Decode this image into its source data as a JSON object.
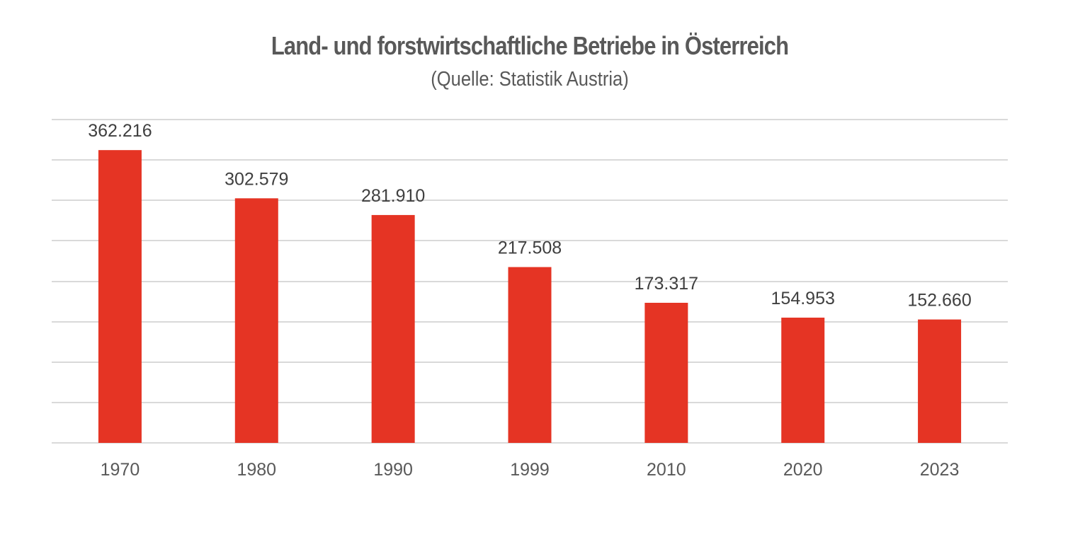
{
  "chart_data": {
    "type": "bar",
    "title": "Land- und forstwirtschaftliche Betriebe in Österreich",
    "subtitle": "(Quelle: Statistik Austria)",
    "categories": [
      "1970",
      "1980",
      "1990",
      "1999",
      "2010",
      "2020",
      "2023"
    ],
    "values": [
      362216,
      302579,
      281910,
      217508,
      173317,
      154953,
      152660
    ],
    "data_labels": [
      "362.216",
      "302.579",
      "281.910",
      "217.508",
      "173.317",
      "154.953",
      "152.660"
    ],
    "xlabel": "",
    "ylabel": "",
    "ylim": [
      0,
      400000
    ],
    "ytick_step": 50000,
    "grid": true,
    "legend": "none",
    "bar_color": "#e53424"
  }
}
